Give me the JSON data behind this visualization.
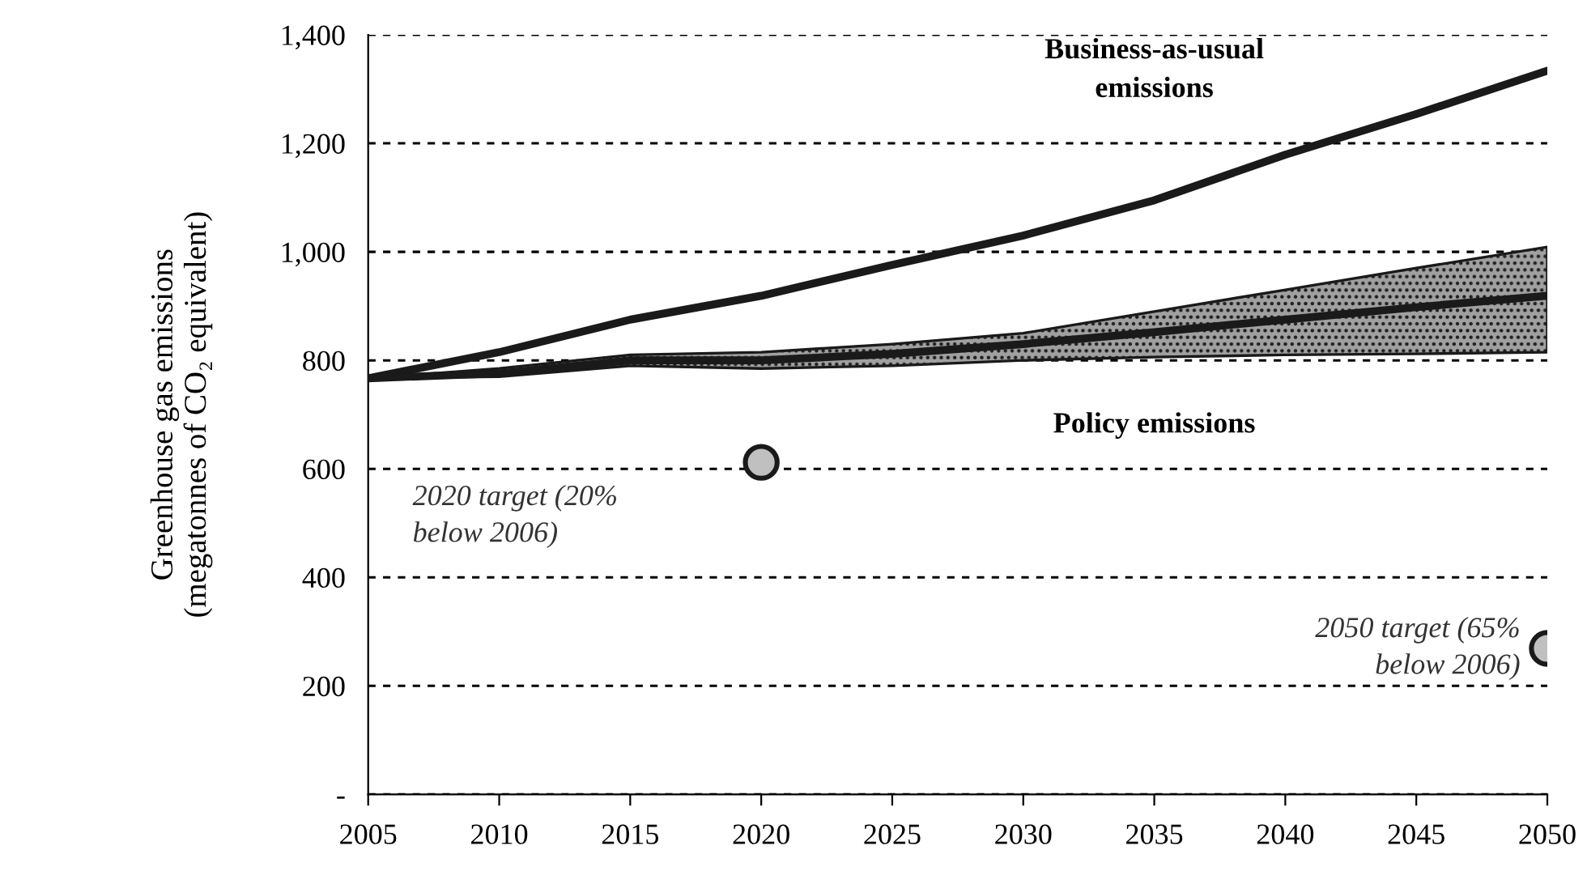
{
  "chart_data": {
    "type": "line",
    "ylabel": "Greenhouse gas emissions\n(megatonnes of CO₂ equivalent)",
    "x": [
      2005,
      2010,
      2015,
      2020,
      2025,
      2030,
      2035,
      2040,
      2045,
      2050
    ],
    "series": [
      {
        "name": "Business-as-usual\nemissions",
        "color": "#1a1a1a",
        "values": [
          767,
          815,
          875,
          919,
          976,
          1030,
          1095,
          1179,
          1254,
          1334
        ]
      },
      {
        "name": "Policy emissions",
        "color": "#1a1a1a",
        "values": [
          767,
          776,
          800,
          800,
          812,
          830,
          852,
          875,
          898,
          919
        ],
        "lower": [
          767,
          770,
          790,
          785,
          790,
          800,
          806,
          810,
          812,
          815
        ],
        "upper": [
          767,
          785,
          810,
          815,
          830,
          850,
          890,
          930,
          970,
          1009
        ]
      },
      {
        "type": "scatter",
        "marker": "circle",
        "color": "#c0c0c0",
        "x": [
          2020,
          2050
        ],
        "values": [
          612,
          269
        ]
      }
    ],
    "annotations": [
      "2020 target (20%\nbelow 2006)",
      "2050 target (65%\nbelow 2006)"
    ],
    "xlim": [
      2005,
      2050
    ],
    "xticks": [
      2005,
      2010,
      2015,
      2020,
      2025,
      2030,
      2035,
      2040,
      2045,
      2050
    ],
    "ylim": [
      0,
      1400
    ],
    "yticks": [
      {
        "value": 0,
        "label": "-"
      },
      {
        "value": 200,
        "label": "200"
      },
      {
        "value": 400,
        "label": "400"
      },
      {
        "value": 600,
        "label": "600"
      },
      {
        "value": 800,
        "label": "800"
      },
      {
        "value": 1000,
        "label": "1,000"
      },
      {
        "value": 1200,
        "label": "1,200"
      },
      {
        "value": 1400,
        "label": "1,400"
      }
    ],
    "grid": "y",
    "marker": "none",
    "line_style": "solid"
  }
}
